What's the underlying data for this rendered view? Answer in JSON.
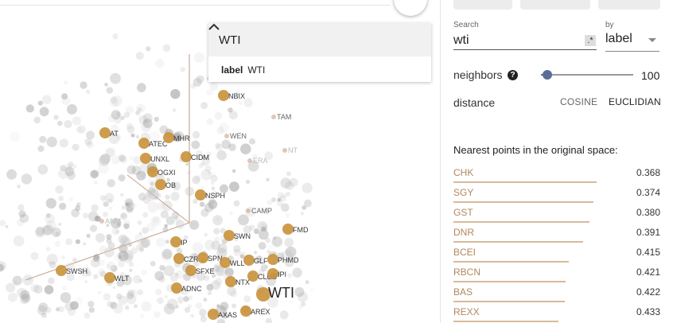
{
  "info_card": {
    "title": "WTI",
    "field_key": "label",
    "field_value": "WTI"
  },
  "home_button": {
    "icon": "home-icon"
  },
  "collapse_icon": "chevron-up-icon",
  "search": {
    "label": "Search",
    "value": "wti",
    "regex_label": ".*"
  },
  "search_by": {
    "label": "by",
    "value": "label"
  },
  "neighbors": {
    "label": "neighbors",
    "value": "100",
    "level": 1.0
  },
  "distance": {
    "label": "distance",
    "options": [
      "COSINE",
      "EUCLIDIAN"
    ],
    "selected": "EUCLIDIAN"
  },
  "nearest": {
    "title": "Nearest points in the original space:",
    "items": [
      {
        "name": "CHK",
        "value": "0.368"
      },
      {
        "name": "SGY",
        "value": "0.374"
      },
      {
        "name": "GST",
        "value": "0.380"
      },
      {
        "name": "DNR",
        "value": "0.391"
      },
      {
        "name": "BCEI",
        "value": "0.415"
      },
      {
        "name": "RBCN",
        "value": "0.421"
      },
      {
        "name": "BAS",
        "value": "0.422"
      },
      {
        "name": "REXX",
        "value": "0.433"
      }
    ]
  },
  "colors": {
    "highlight": "#c9913a",
    "accent": "#5a6d96",
    "list_text": "#b08860"
  },
  "scatter": {
    "highlighted_labels": [
      "NBIX",
      "AT",
      "ATEC",
      "MHR",
      "UNXL",
      "CIDM",
      "OGXI",
      "OB",
      "NSPH",
      "FMD",
      "SWN",
      "IP",
      "CZR",
      "SPN",
      "WLL",
      "GLF",
      "PHMD",
      "SFXE",
      "CLUB",
      "IPI",
      "SWSH",
      "WLT",
      "ADNC",
      "NTX",
      "WTI",
      "AXAS",
      "AREX"
    ],
    "other_labels": [
      "TAM",
      "WEN",
      "ERA",
      "NT",
      "CAMP",
      "ANM"
    ]
  }
}
